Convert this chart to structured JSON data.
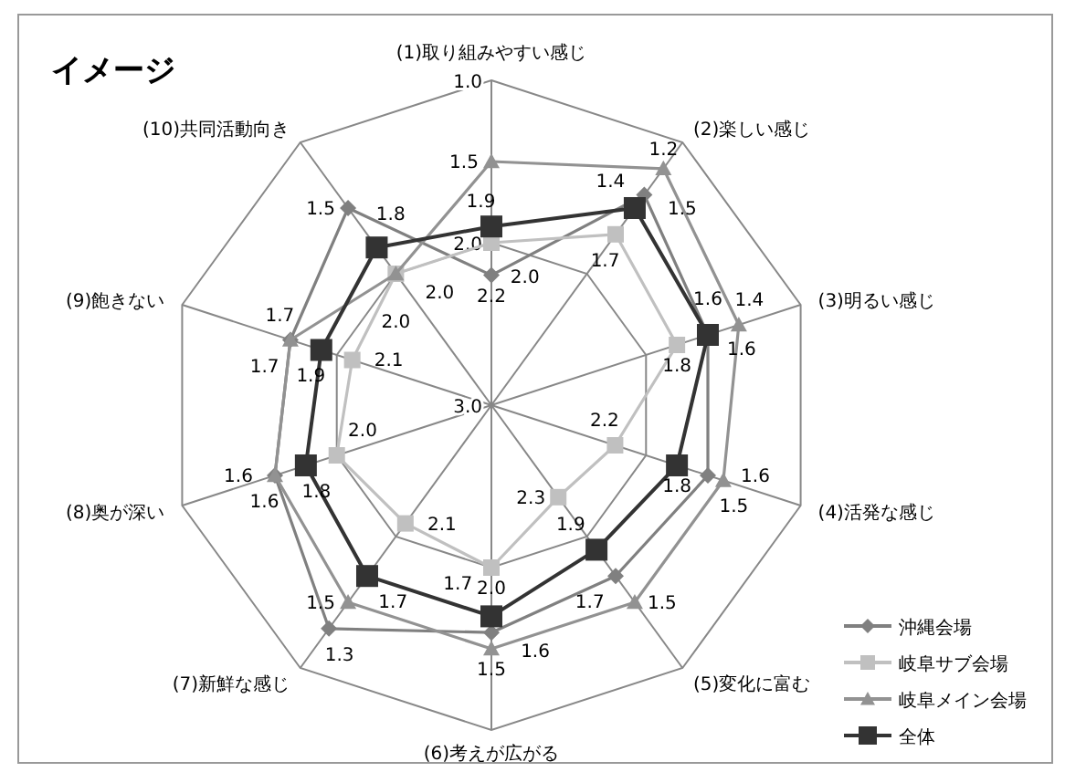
{
  "chart_data": {
    "type": "radar",
    "title": "イメージ",
    "categories": [
      "(1)取り組みやすい感じ",
      "(2)楽しい感じ",
      "(3)明るい感じ",
      "(4)活発な感じ",
      "(5)変化に富む",
      "(6)考えが広がる",
      "(7)新鮮な感じ",
      "(8)奥が深い",
      "(9)飽きない",
      "(10)共同活動向き"
    ],
    "series": [
      {
        "name": "沖縄会場",
        "color": "#808080",
        "marker": "diamond",
        "values": [
          2.2,
          1.4,
          1.6,
          1.6,
          1.7,
          1.6,
          1.3,
          1.6,
          1.7,
          1.5
        ],
        "value_labels": [
          "2.2",
          "1.4",
          "1.6",
          "1.6",
          "1.7",
          "1.6",
          "1.3",
          "1.6",
          "1.7",
          "1.5"
        ]
      },
      {
        "name": "岐阜サブ会場",
        "color": "#c0c0c0",
        "marker": "square",
        "values": [
          2.0,
          1.7,
          1.8,
          2.2,
          2.3,
          2.0,
          2.1,
          2.0,
          2.1,
          2.0
        ],
        "value_labels": [
          "2.0",
          "1.7",
          "1.8",
          "2.2",
          "2.3",
          "2.0",
          "2.1",
          "2.0",
          "2.1",
          "2.0"
        ]
      },
      {
        "name": "岐阜メイン会場",
        "color": "#929292",
        "marker": "triangle",
        "values": [
          1.5,
          1.2,
          1.4,
          1.5,
          1.5,
          1.5,
          1.5,
          1.6,
          1.7,
          2.0
        ],
        "value_labels": [
          "1.5",
          "1.2",
          "1.4",
          "1.5",
          "1.5",
          "1.5",
          "1.5",
          "1.6",
          "1.7",
          "2.0"
        ]
      },
      {
        "name": "全体",
        "color": "#333333",
        "marker": "square",
        "values": [
          1.9,
          1.5,
          1.6,
          1.8,
          1.9,
          1.7,
          1.7,
          1.8,
          1.9,
          1.8
        ],
        "value_labels": [
          "1.9",
          "1.5",
          "1.6",
          "1.8",
          "1.9",
          "1.7",
          "1.7",
          "1.8",
          "1.9",
          "1.8"
        ]
      }
    ],
    "ylim": [
      3.0,
      1.0
    ],
    "yticks": [
      {
        "value": 1.0,
        "label": "1.0"
      },
      {
        "value": 2.0,
        "label": "2.0"
      },
      {
        "value": 3.0,
        "label": "3.0"
      }
    ],
    "legend": "bottom right",
    "grid": true
  }
}
